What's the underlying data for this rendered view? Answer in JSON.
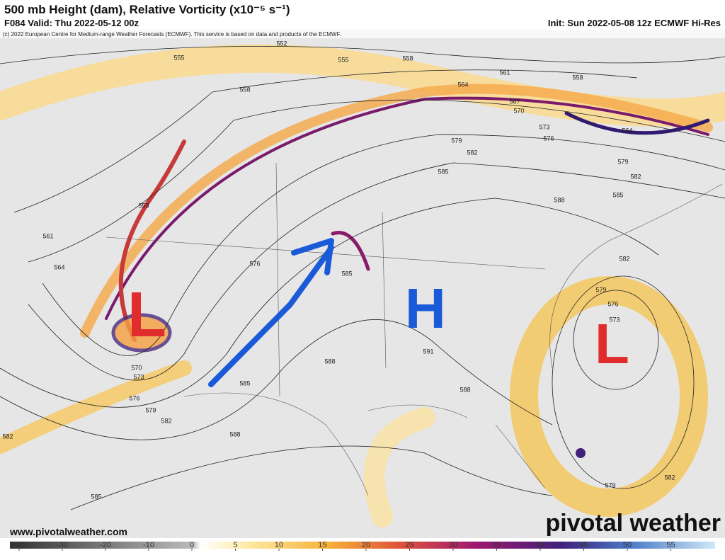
{
  "header": {
    "title": "500 mb Height (dam), Relative Vorticity (x10⁻⁵ s⁻¹)",
    "valid": "F084 Valid: Thu 2022-05-12 00z",
    "init": "Init: Sun 2022-05-08 12z ECMWF Hi-Res",
    "copyright": "(c) 2022 European Centre for Medium-range Weather Forecasts (ECMWF). This service is based on data and products of the ECMWF."
  },
  "contour_labels": [
    "552",
    "555",
    "555",
    "558",
    "558",
    "561",
    "558",
    "564",
    "567",
    "570",
    "573",
    "576",
    "579",
    "582",
    "585",
    "564",
    "579",
    "582",
    "585",
    "588",
    "558",
    "561",
    "564",
    "576",
    "585",
    "582",
    "579",
    "576",
    "573",
    "591",
    "588",
    "588",
    "585",
    "570",
    "573",
    "576",
    "579",
    "582",
    "582",
    "588",
    "585",
    "579",
    "582"
  ],
  "annotations": [
    "L",
    "H",
    "L"
  ],
  "footer": {
    "website": "www.pivotalweather.com",
    "logo": "pivotal weather"
  },
  "colorbar": {
    "ticks": [
      -40,
      -30,
      -20,
      -10,
      0,
      5,
      10,
      15,
      20,
      25,
      30,
      35,
      40,
      45,
      50,
      55
    ]
  }
}
